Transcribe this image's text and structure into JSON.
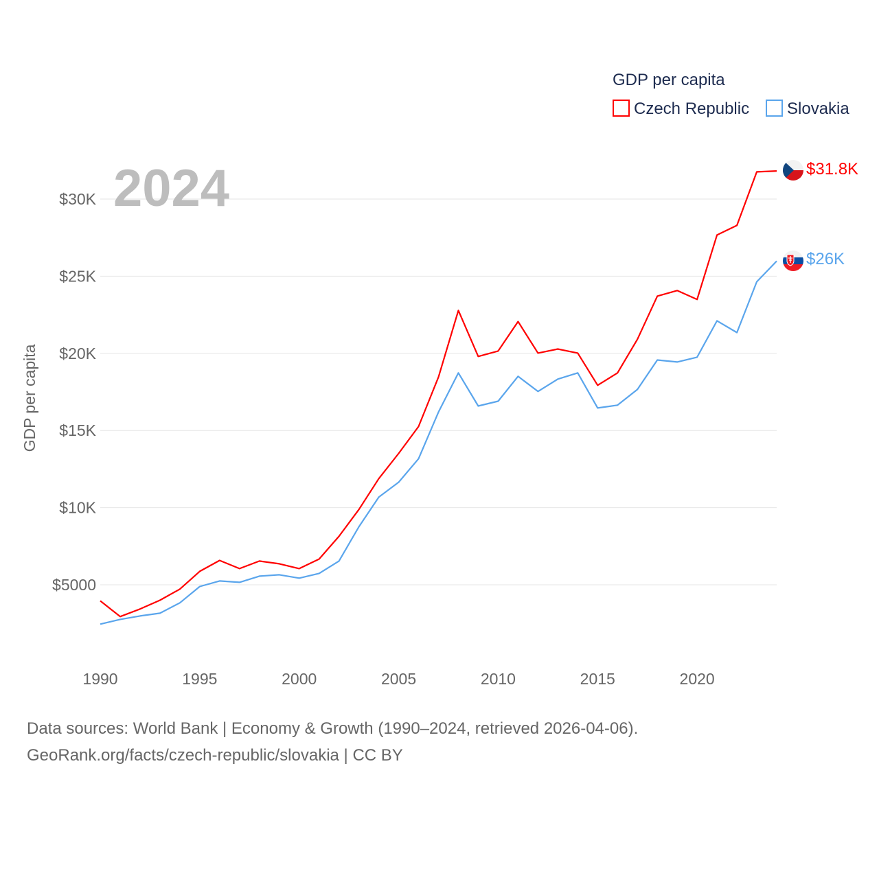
{
  "chart_data": {
    "type": "line",
    "title": "GDP per capita",
    "ylabel": "GDP per capita",
    "xlabel": "",
    "year_label": "2024",
    "xlim": [
      1990,
      2024
    ],
    "ylim": [
      0,
      32500
    ],
    "x_ticks": [
      1990,
      1995,
      2000,
      2005,
      2010,
      2015,
      2020
    ],
    "x_tick_labels": [
      "1990",
      "1995",
      "2000",
      "2005",
      "2010",
      "2015",
      "2020"
    ],
    "y_ticks": [
      5000,
      10000,
      15000,
      20000,
      25000,
      30000
    ],
    "y_tick_labels": [
      "$5000",
      "$10K",
      "$15K",
      "$20K",
      "$25K",
      "$30K"
    ],
    "grid": true,
    "legend_placement": "top-right",
    "x": [
      1990,
      1991,
      1992,
      1993,
      1994,
      1995,
      1996,
      1997,
      1998,
      1999,
      2000,
      2001,
      2002,
      2003,
      2004,
      2005,
      2006,
      2007,
      2008,
      2009,
      2010,
      2011,
      2012,
      2013,
      2014,
      2015,
      2016,
      2017,
      2018,
      2019,
      2020,
      2021,
      2022,
      2023,
      2024
    ],
    "series": [
      {
        "name": "Czech Republic",
        "color": "#ff0000",
        "end_label": "$31.8K",
        "values": [
          3960,
          2940,
          3430,
          4000,
          4720,
          5870,
          6580,
          6050,
          6540,
          6360,
          6050,
          6670,
          8140,
          9880,
          11880,
          13520,
          15260,
          18460,
          22780,
          19800,
          20150,
          22060,
          20020,
          20280,
          20020,
          17930,
          18730,
          20910,
          23710,
          24070,
          23490,
          27670,
          28290,
          31760,
          31820
        ]
      },
      {
        "name": "Slovakia",
        "color": "#5aa5ec",
        "end_label": "$26K",
        "values": [
          2450,
          2760,
          2980,
          3160,
          3830,
          4890,
          5250,
          5160,
          5560,
          5650,
          5430,
          5740,
          6540,
          8760,
          10680,
          11650,
          13170,
          16190,
          18730,
          16590,
          16900,
          18510,
          17530,
          18330,
          18730,
          16460,
          16640,
          17660,
          19570,
          19440,
          19750,
          22110,
          21350,
          24640,
          25980
        ]
      }
    ]
  },
  "footer": {
    "line1": "Data sources: World Bank | Economy & Growth (1990–2024, retrieved 2026-04-06).",
    "line2": "GeoRank.org/facts/czech-republic/slovakia | CC BY"
  }
}
